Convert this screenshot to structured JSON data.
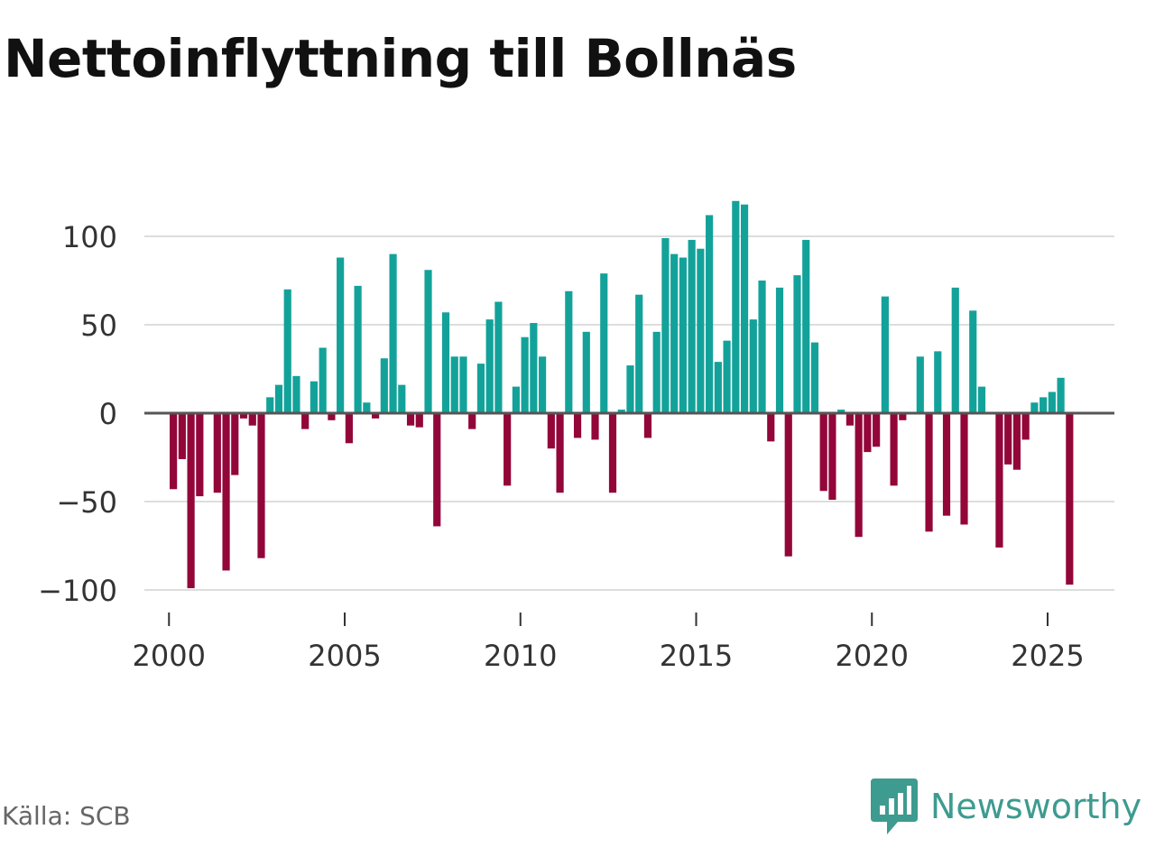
{
  "title": "Nettoinflyttning till Bollnäs",
  "source": "Källa: SCB",
  "brand": "Newsworthy",
  "colors": {
    "positive": "#13a29a",
    "negative": "#930639",
    "grid": "#dddddd",
    "zero": "#555555",
    "brand": "#3d9b8f"
  },
  "chart_data": {
    "type": "bar",
    "title": "Nettoinflyttning till Bollnäs",
    "xlabel": "",
    "ylabel": "",
    "ylim": [
      -110,
      120
    ],
    "xlim": [
      1999.3,
      2026.9
    ],
    "yticks": [
      100,
      50,
      0,
      -50,
      -100
    ],
    "ytick_labels": [
      "100",
      "50",
      "0",
      "−50",
      "−100"
    ],
    "xticks": [
      2000,
      2005,
      2010,
      2015,
      2020,
      2025
    ],
    "xtick_labels": [
      "2000",
      "2005",
      "2010",
      "2015",
      "2020",
      "2025"
    ],
    "frequency": "quarterly",
    "start": 2000.125,
    "step": 0.25,
    "values": [
      -43,
      -26,
      -99,
      -47,
      0,
      -45,
      -89,
      -35,
      -3,
      -7,
      -82,
      9,
      16,
      70,
      21,
      -9,
      18,
      37,
      -4,
      88,
      -17,
      72,
      6,
      -3,
      31,
      90,
      16,
      -7,
      -8,
      81,
      -64,
      57,
      32,
      32,
      -9,
      28,
      53,
      63,
      -41,
      15,
      43,
      51,
      32,
      -20,
      -45,
      69,
      -14,
      46,
      -15,
      79,
      -45,
      2,
      27,
      67,
      -14,
      46,
      99,
      90,
      88,
      98,
      93,
      112,
      29,
      41,
      120,
      118,
      53,
      75,
      -16,
      71,
      -81,
      78,
      98,
      40,
      -44,
      -49,
      2,
      -7,
      -70,
      -22,
      -19,
      66,
      -41,
      -4,
      0,
      32,
      -67,
      35,
      -58,
      71,
      -63,
      58,
      15,
      0,
      -76,
      -29,
      -32,
      -15,
      6,
      9,
      12,
      20,
      -97
    ]
  }
}
